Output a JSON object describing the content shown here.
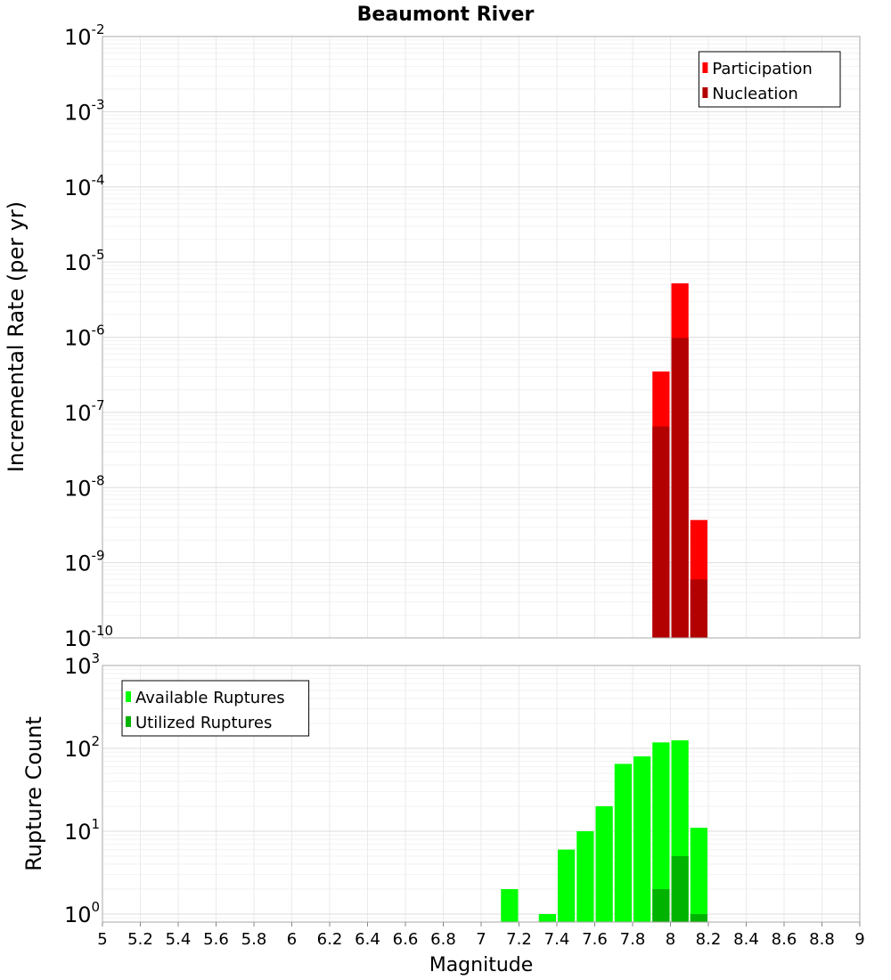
{
  "chart_data": [
    {
      "type": "bar",
      "title": "Beaumont River",
      "xlabel": "Magnitude",
      "ylabel": "Incremental Rate (per yr)",
      "yscale": "log",
      "ylim": [
        1e-10,
        0.01
      ],
      "xlim": [
        5,
        9
      ],
      "bin_width": 0.1,
      "legend_position": "top-right",
      "series": [
        {
          "name": "Participation",
          "color": "#ff0000",
          "points": [
            {
              "x": 7.95,
              "y": 3.5e-07
            },
            {
              "x": 8.05,
              "y": 5.2e-06
            },
            {
              "x": 8.15,
              "y": 3.7e-09
            }
          ]
        },
        {
          "name": "Nucleation",
          "color": "#b30000",
          "points": [
            {
              "x": 7.95,
              "y": 6.5e-08
            },
            {
              "x": 8.05,
              "y": 9.8e-07
            },
            {
              "x": 8.15,
              "y": 6e-10
            }
          ]
        }
      ],
      "y_ticks": [
        {
          "value": 1e-10,
          "base": "10",
          "exp": "-10"
        },
        {
          "value": 1e-09,
          "base": "10",
          "exp": "-9"
        },
        {
          "value": 1e-08,
          "base": "10",
          "exp": "-8"
        },
        {
          "value": 1e-07,
          "base": "10",
          "exp": "-7"
        },
        {
          "value": 1e-06,
          "base": "10",
          "exp": "-6"
        },
        {
          "value": 1e-05,
          "base": "10",
          "exp": "-5"
        },
        {
          "value": 0.0001,
          "base": "10",
          "exp": "-4"
        },
        {
          "value": 0.001,
          "base": "10",
          "exp": "-3"
        },
        {
          "value": 0.01,
          "base": "10",
          "exp": "-2"
        }
      ]
    },
    {
      "type": "bar",
      "ylabel": "Rupture Count",
      "yscale": "log",
      "ylim": [
        0.8,
        1000
      ],
      "xlim": [
        5,
        9
      ],
      "bin_width": 0.1,
      "legend_position": "top-left",
      "series": [
        {
          "name": "Available Ruptures",
          "color": "#00ff00",
          "points": [
            {
              "x": 7.15,
              "y": 2
            },
            {
              "x": 7.35,
              "y": 1
            },
            {
              "x": 7.45,
              "y": 6
            },
            {
              "x": 7.55,
              "y": 10
            },
            {
              "x": 7.65,
              "y": 20
            },
            {
              "x": 7.75,
              "y": 65
            },
            {
              "x": 7.85,
              "y": 80
            },
            {
              "x": 7.95,
              "y": 118
            },
            {
              "x": 8.05,
              "y": 125
            },
            {
              "x": 8.15,
              "y": 11
            }
          ]
        },
        {
          "name": "Utilized Ruptures",
          "color": "#00b300",
          "points": [
            {
              "x": 7.95,
              "y": 2
            },
            {
              "x": 8.05,
              "y": 5
            },
            {
              "x": 8.15,
              "y": 1
            }
          ]
        }
      ],
      "y_ticks": [
        {
          "value": 1,
          "base": "10",
          "exp": "0"
        },
        {
          "value": 10,
          "base": "10",
          "exp": "1"
        },
        {
          "value": 100,
          "base": "10",
          "exp": "2"
        },
        {
          "value": 1000,
          "base": "10",
          "exp": "3"
        }
      ]
    }
  ],
  "x_ticks": [
    "5",
    "5.2",
    "5.4",
    "5.6",
    "5.8",
    "6",
    "6.2",
    "6.4",
    "6.6",
    "6.8",
    "7",
    "7.2",
    "7.4",
    "7.6",
    "7.8",
    "8",
    "8.2",
    "8.4",
    "8.6",
    "8.8",
    "9"
  ]
}
